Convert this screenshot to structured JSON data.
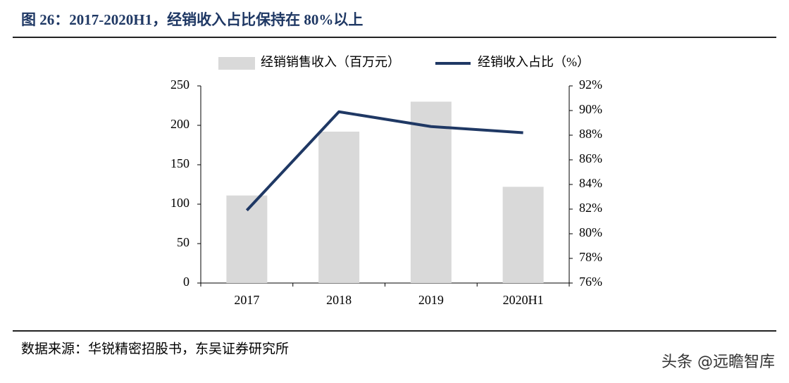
{
  "chart_data": {
    "type": "combo",
    "title": "图 26：2017-2020H1，经销收入占比保持在 80%以上",
    "categories": [
      "2017",
      "2018",
      "2019",
      "2020H1"
    ],
    "series": [
      {
        "name": "经销销售收入（百万元）",
        "type": "bar",
        "color": "#d9d9d9",
        "values": [
          111,
          192,
          230,
          122
        ]
      },
      {
        "name": "经销收入占比（%）",
        "type": "line",
        "axis": "y2",
        "color": "#1f3864",
        "values": [
          81.9,
          89.9,
          88.7,
          88.2
        ]
      }
    ],
    "ylim": [
      0,
      250
    ],
    "yticks": [
      0,
      50,
      100,
      150,
      200,
      250
    ],
    "y2lim": [
      76,
      92
    ],
    "y2ticks": [
      {
        "value": 76,
        "label": "76%"
      },
      {
        "value": 78,
        "label": "78%"
      },
      {
        "value": 80,
        "label": "80%"
      },
      {
        "value": 82,
        "label": "82%"
      },
      {
        "value": 84,
        "label": "84%"
      },
      {
        "value": 86,
        "label": "86%"
      },
      {
        "value": 88,
        "label": "88%"
      },
      {
        "value": 90,
        "label": "90%"
      },
      {
        "value": 92,
        "label": "92%"
      }
    ],
    "grid": false,
    "legend": "top",
    "source": "数据来源：华锐精密招股书，东吴证券研究所"
  },
  "watermark": "头条 @远瞻智库"
}
